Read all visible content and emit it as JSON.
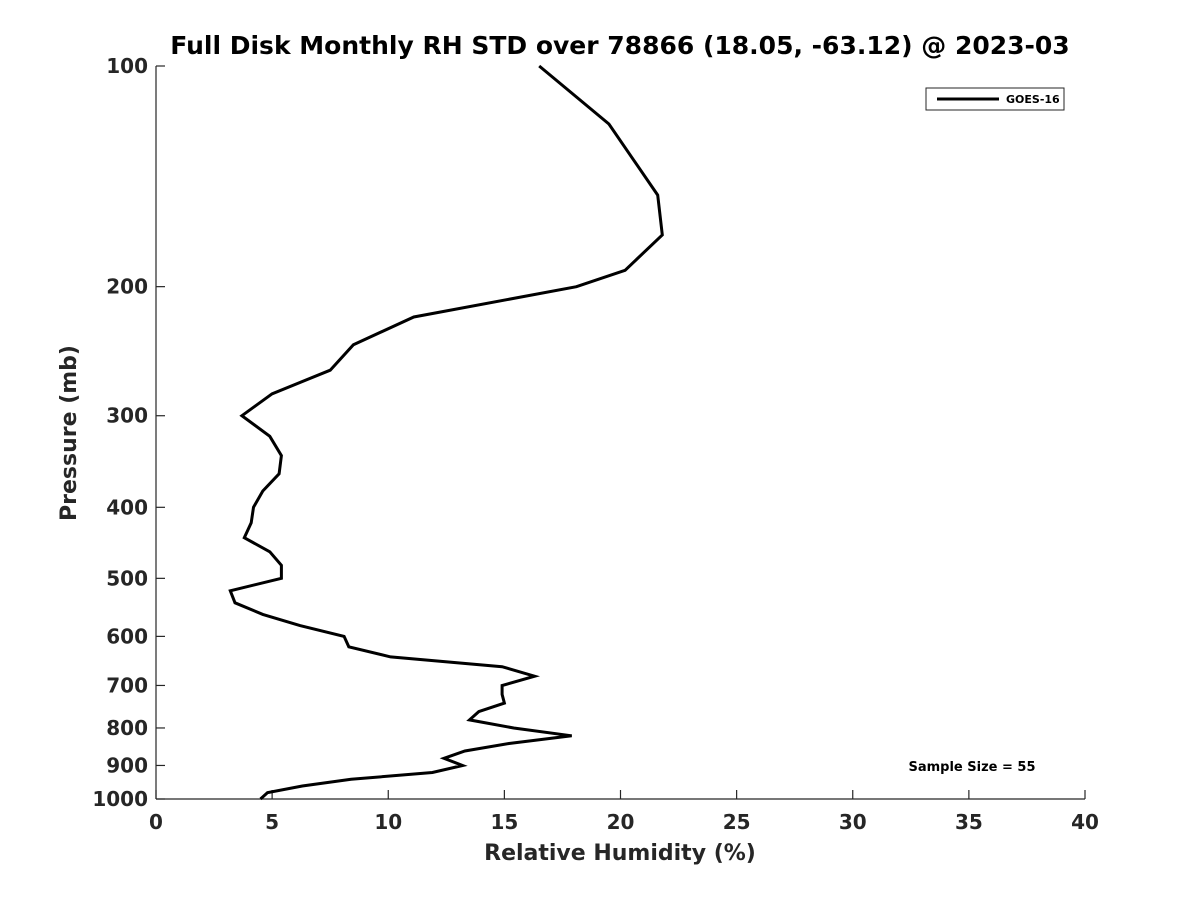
{
  "chart_data": {
    "type": "line",
    "title": "Full Disk Monthly RH STD over 78866 (18.05, -63.12) @ 2023-03",
    "xlabel": "Relative Humidity (%)",
    "ylabel": "Pressure (mb)",
    "xlim": [
      0,
      40
    ],
    "ylim": [
      100,
      1000
    ],
    "y_scale": "log",
    "y_reversed": true,
    "x_ticks": [
      0,
      5,
      10,
      15,
      20,
      25,
      30,
      35,
      40
    ],
    "y_ticks": [
      100,
      200,
      300,
      400,
      500,
      600,
      700,
      800,
      900,
      1000
    ],
    "grid": false,
    "legend_position": "top-right",
    "annotation": "Sample Size = 55",
    "series": [
      {
        "name": "GOES-16",
        "color": "#000000",
        "x": [
          16.5,
          19.5,
          21.6,
          21.8,
          20.2,
          18.1,
          11.1,
          8.5,
          7.5,
          5.0,
          3.7,
          4.9,
          5.4,
          5.3,
          4.6,
          4.2,
          4.1,
          3.8,
          4.9,
          5.4,
          5.4,
          3.2,
          3.4,
          4.6,
          6.2,
          8.1,
          8.3,
          10.1,
          14.9,
          16.3,
          14.9,
          14.9,
          15.0,
          13.9,
          13.5,
          15.4,
          17.9,
          15.2,
          13.3,
          12.4,
          13.2,
          11.9,
          8.4,
          6.3,
          4.8,
          4.5
        ],
        "y": [
          100,
          120,
          150,
          170,
          190,
          200,
          220,
          240,
          260,
          280,
          300,
          320,
          340,
          360,
          380,
          400,
          420,
          440,
          460,
          480,
          500,
          520,
          540,
          560,
          580,
          600,
          620,
          640,
          660,
          680,
          700,
          720,
          740,
          760,
          780,
          800,
          820,
          840,
          860,
          880,
          900,
          920,
          940,
          960,
          980,
          1000
        ]
      }
    ]
  }
}
